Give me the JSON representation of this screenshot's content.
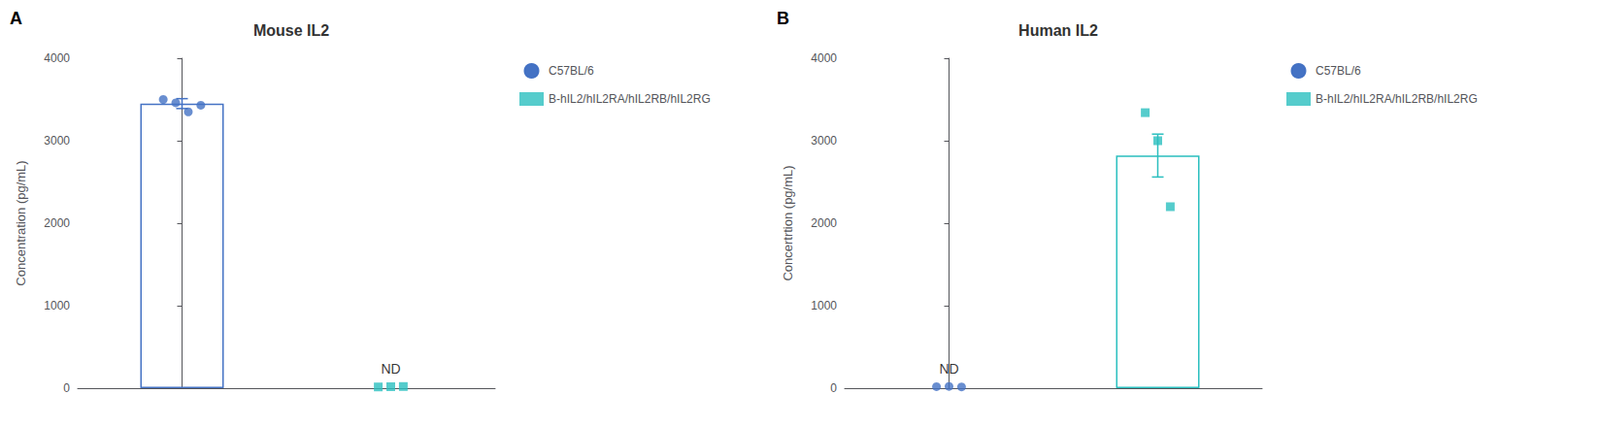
{
  "chart_data": [
    {
      "type": "bar",
      "title": "Mouse IL2",
      "ylabel": "Concentration (pg/mL)",
      "categories": [
        null,
        null
      ],
      "ylim": [
        0,
        4000
      ],
      "yticks": [
        0,
        1000,
        2000,
        3000,
        4000
      ],
      "grid": false,
      "legend": "right",
      "tick_labels": "y",
      "series": [
        {
          "name": "C57BL/6",
          "color": "#4472C4",
          "marker": "circle",
          "values": [
            3450,
            null
          ],
          "errors": [
            60,
            null
          ],
          "points": [
            [
              3500,
              3460,
              3350,
              3430
            ],
            []
          ]
        },
        {
          "name": "B-hIL2/hIL2RA/hIL2RB/hIL2RG",
          "color": "#2ABFBF",
          "marker": "square",
          "values": [
            null,
            null
          ],
          "errors": [
            null,
            null
          ],
          "points": [
            [],
            [
              15,
              18,
              20
            ]
          ]
        }
      ],
      "annotations": [
        {
          "text": "A"
        },
        {
          "text": "ND",
          "category": 1,
          "y": 100
        }
      ]
    },
    {
      "type": "bar",
      "title": "Human IL2",
      "ylabel": "Concertrtion (pg/mL)",
      "categories": [
        null,
        null
      ],
      "ylim": [
        0,
        4000
      ],
      "yticks": [
        0,
        1000,
        2000,
        3000,
        4000
      ],
      "grid": false,
      "legend": "right",
      "tick_labels": "y",
      "series": [
        {
          "name": "C57BL/6",
          "color": "#4472C4",
          "marker": "circle",
          "values": [
            null,
            null
          ],
          "errors": [
            null,
            null
          ],
          "points": [
            [
              18,
              22,
              15
            ],
            []
          ]
        },
        {
          "name": "B-hIL2/hIL2RA/hIL2RB/hIL2RG",
          "color": "#2ABFBF",
          "marker": "square",
          "values": [
            null,
            2820
          ],
          "errors": [
            null,
            260
          ],
          "points": [
            [],
            [
              3340,
              3000,
              2200
            ]
          ]
        }
      ],
      "annotations": [
        {
          "text": "B"
        },
        {
          "text": "ND",
          "category": 0,
          "y": 100
        }
      ]
    }
  ]
}
